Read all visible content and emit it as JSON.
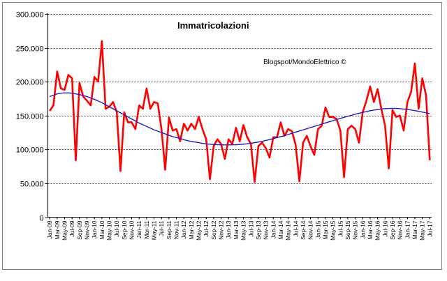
{
  "chart_data": {
    "type": "line",
    "title": "Immatricolazioni",
    "annotation": "Blogspot/MondoElettrico ©",
    "xlabel": "",
    "ylabel": "",
    "ylim": [
      0,
      300000
    ],
    "y_ticks": [
      "0",
      "50.000",
      "100.000",
      "150.000",
      "200.000",
      "250.000",
      "300.000"
    ],
    "grid": "horizontal-dashed",
    "x_tick_labels": [
      "Jan-09",
      "Mar-09",
      "May-09",
      "Jul-09",
      "Sep-09",
      "Nov-09",
      "Jan-10",
      "Mar-10",
      "May-10",
      "Jul-10",
      "Sep-10",
      "Nov-10",
      "Jan-11",
      "Mar-11",
      "May-11",
      "Jul-11",
      "Sep-11",
      "Nov-11",
      "Jan-12",
      "Mar-12",
      "May-12",
      "Jul-12",
      "Sep-12",
      "Nov-12",
      "Jan-13",
      "Mar-13",
      "May-13",
      "Jul-13",
      "Sep-13",
      "Nov-13",
      "Jan-14",
      "Mar-14",
      "May-14",
      "Jul-14",
      "Sep-14",
      "Nov-14",
      "Jan-15",
      "Mar-15",
      "May-15",
      "Jul-15",
      "Sep-15",
      "Nov-15",
      "Jan-16",
      "Mar-16",
      "May-16",
      "Jul-16",
      "Sep-16",
      "Nov-16",
      "Jan-17",
      "Mar-17",
      "May-17",
      "Jul-17"
    ],
    "series": [
      {
        "color": "#ff0000",
        "values": [
          157000,
          165000,
          215000,
          190000,
          188000,
          210000,
          205000,
          84000,
          198000,
          178000,
          172000,
          165000,
          207000,
          200000,
          260000,
          160000,
          163000,
          170000,
          155000,
          68000,
          155000,
          140000,
          140000,
          130000,
          165000,
          160000,
          190000,
          160000,
          170000,
          168000,
          130000,
          70000,
          147000,
          128000,
          130000,
          112000,
          138000,
          128000,
          138000,
          130000,
          148000,
          130000,
          115000,
          56000,
          105000,
          115000,
          108000,
          86000,
          115000,
          108000,
          132000,
          112000,
          136000,
          118000,
          108000,
          52000,
          105000,
          110000,
          102000,
          88000,
          118000,
          118000,
          140000,
          120000,
          130000,
          127000,
          107000,
          53000,
          110000,
          120000,
          105000,
          92000,
          130000,
          135000,
          162000,
          148000,
          148000,
          145000,
          128000,
          59000,
          130000,
          135000,
          130000,
          110000,
          155000,
          172000,
          193000,
          170000,
          189000,
          160000,
          135000,
          72000,
          158000,
          148000,
          150000,
          128000,
          170000,
          185000,
          227000,
          160000,
          205000,
          180000,
          84000
        ]
      },
      {
        "color": "#1f1fbf",
        "values": [
          178000,
          180000,
          182000,
          183000,
          183500,
          183500,
          183000,
          182000,
          181000,
          179500,
          178000,
          176000,
          174000,
          171500,
          169000,
          166000,
          163000,
          160000,
          157000,
          154000,
          151000,
          148000,
          145000,
          142000,
          139000,
          136500,
          134000,
          131500,
          129000,
          127000,
          125000,
          123000,
          121000,
          119000,
          117500,
          116000,
          114500,
          113000,
          112000,
          111000,
          110000,
          109000,
          108300,
          107700,
          107200,
          107000,
          106800,
          106700,
          106700,
          106800,
          107000,
          107300,
          107800,
          108400,
          109200,
          110000,
          111000,
          112100,
          113300,
          114600,
          116000,
          117400,
          118900,
          120500,
          122100,
          123800,
          125500,
          127200,
          128900,
          130600,
          132300,
          134000,
          135700,
          137400,
          139100,
          140800,
          142500,
          144200,
          145800,
          147400,
          149000,
          150500,
          152000,
          153400,
          154700,
          156000,
          157100,
          158100,
          159000,
          159700,
          160200,
          160500,
          160600,
          160500,
          160200,
          159700,
          159000,
          158200,
          157300,
          156300,
          155200,
          154100,
          153000
        ]
      }
    ]
  }
}
